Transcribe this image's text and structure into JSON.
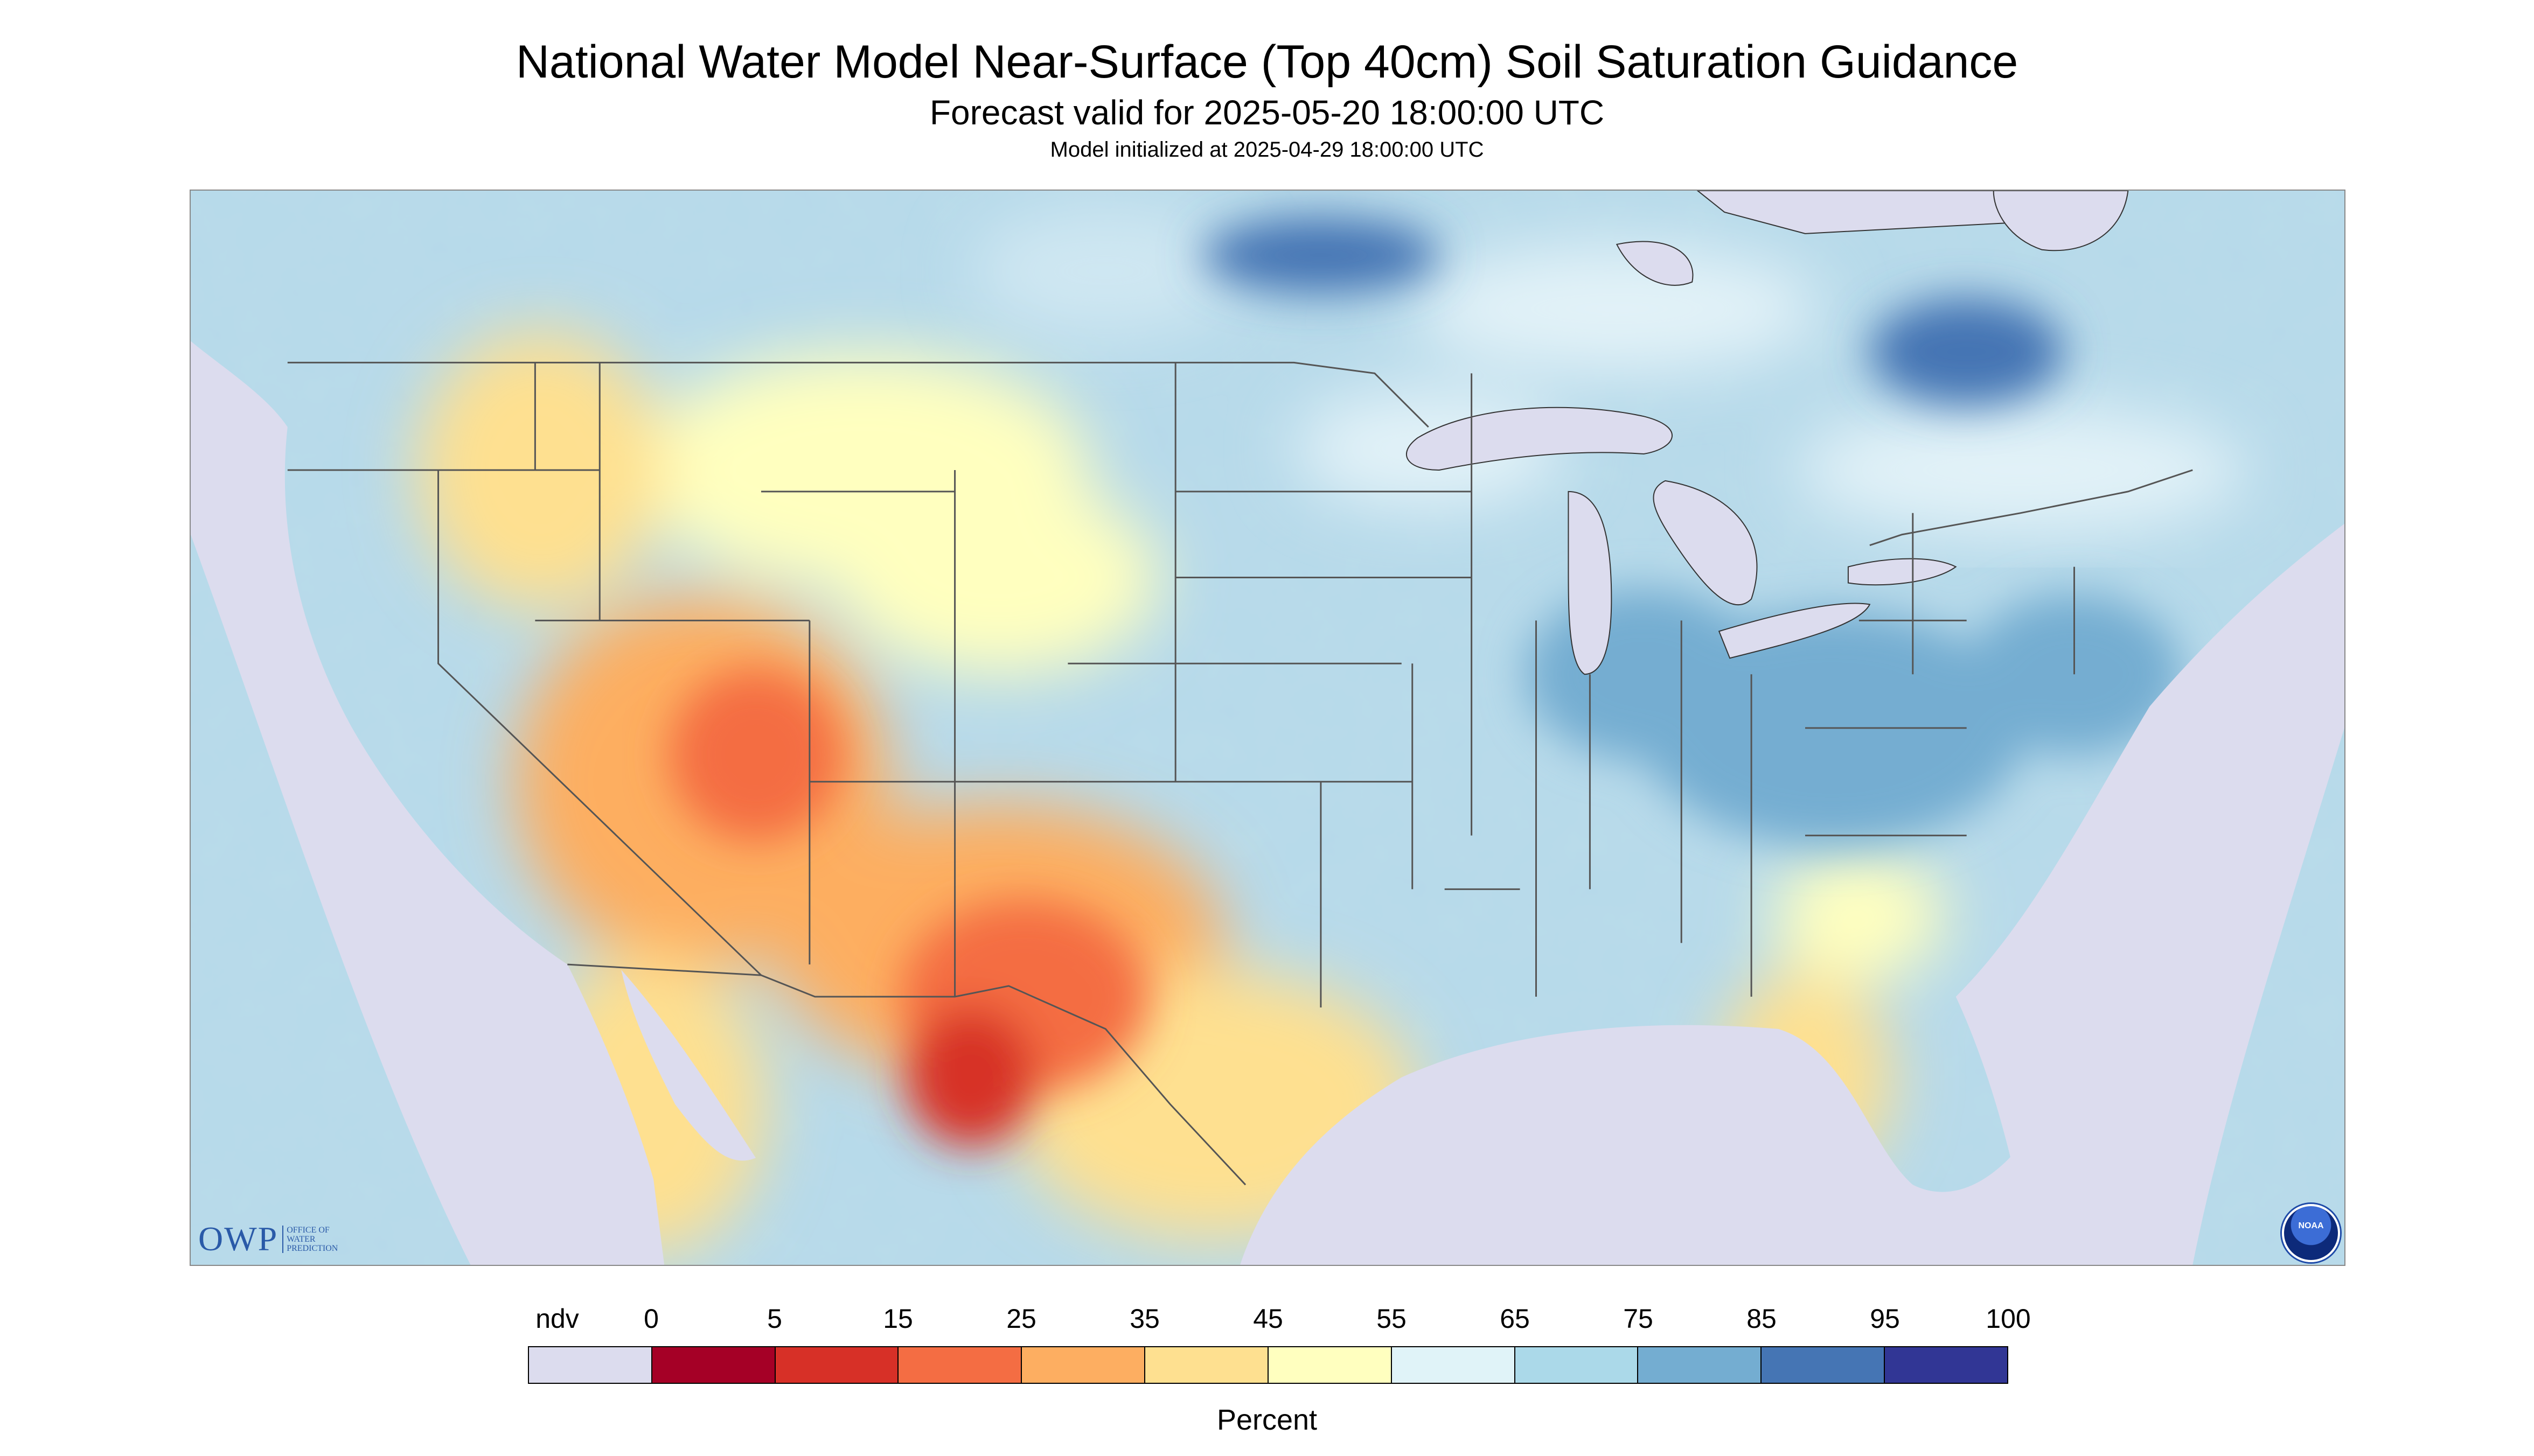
{
  "header": {
    "title": "National Water Model Near-Surface (Top 40cm) Soil Saturation Guidance",
    "subtitle": "Forecast valid for 2025-05-20 18:00:00 UTC",
    "init": "Model initialized at 2025-04-29 18:00:00 UTC"
  },
  "logos": {
    "owp_abbrev": "OWP",
    "owp_line1": "OFFICE OF",
    "owp_line2": "WATER",
    "owp_line3": "PREDICTION",
    "noaa": "NOAA"
  },
  "legend": {
    "labels": [
      "ndv",
      "0",
      "5",
      "15",
      "25",
      "35",
      "45",
      "55",
      "65",
      "75",
      "85",
      "95",
      "100"
    ],
    "colors": [
      "#dcdcee",
      "#a50026",
      "#d73027",
      "#f46d43",
      "#fdae61",
      "#fee090",
      "#ffffbf",
      "#e0f3f8",
      "#abd9e9",
      "#74add1",
      "#4575b4",
      "#313695"
    ],
    "unit": "Percent"
  },
  "map": {
    "no_data_color": "#dcdcee",
    "water_color": "#dcdcee",
    "background_color": "#c9def0",
    "border_color": "#555555"
  }
}
